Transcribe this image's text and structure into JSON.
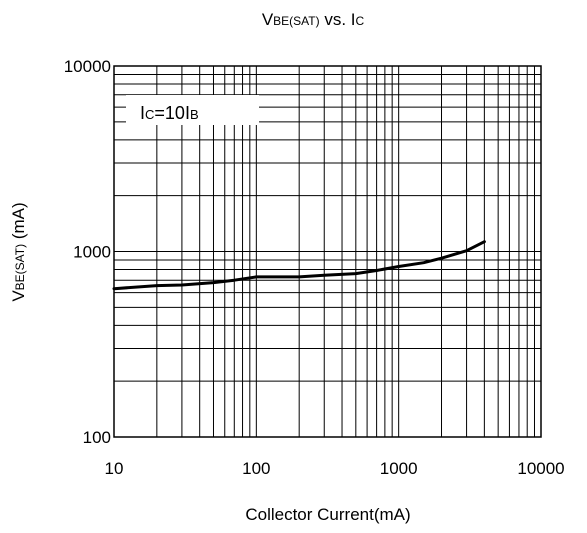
{
  "chart_data": {
    "type": "line",
    "title": {
      "main": "V",
      "sub": "BE(SAT)",
      "mid": " vs. I",
      "sub2": "C"
    },
    "xlabel": "Collector Current(mA)",
    "ylabel": {
      "main": "V",
      "sub": "BE(SAT)",
      "rest": " (mA)"
    },
    "x_scale": "log",
    "y_scale": "log",
    "xlim": [
      10,
      10000
    ],
    "ylim": [
      100,
      10000
    ],
    "x_ticks": [
      10,
      100,
      1000,
      10000
    ],
    "x_tick_labels": [
      "10",
      "100",
      "1000",
      "10000"
    ],
    "y_ticks": [
      100,
      1000,
      10000
    ],
    "y_tick_labels": [
      "100",
      "1000",
      "10000"
    ],
    "grid": true,
    "annotation": {
      "p1": "I",
      "s1": "C",
      "p2": "=10I",
      "s2": "B"
    },
    "series": [
      {
        "x": [
          10,
          20,
          30,
          50,
          70,
          100,
          200,
          300,
          500,
          700,
          1000,
          1500,
          2000,
          3000,
          4000
        ],
        "y": [
          630,
          655,
          660,
          680,
          700,
          730,
          730,
          745,
          760,
          790,
          830,
          870,
          920,
          1010,
          1130
        ]
      }
    ]
  }
}
